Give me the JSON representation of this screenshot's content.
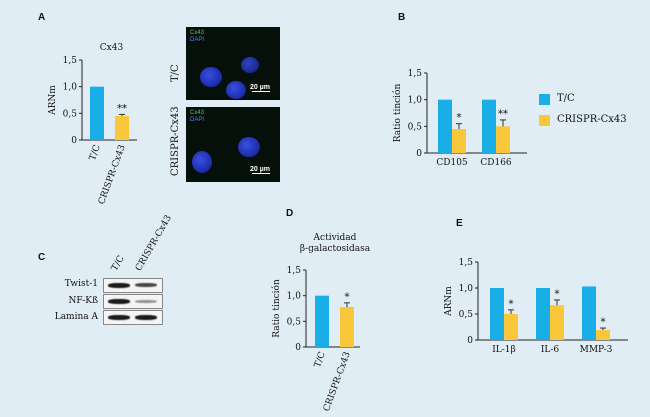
{
  "panels": {
    "a": "A",
    "b": "B",
    "c": "C",
    "d": "D",
    "e": "E"
  },
  "colors": {
    "tc": "#1aaee8",
    "crispr": "#fac63a",
    "background": "#e1edf4"
  },
  "micrograph": {
    "channel_cx43": "Cx43",
    "channel_dapi": "DAPI",
    "scale": "20 µm",
    "row_labels": [
      "T/C",
      "CRISPR-Cx43"
    ]
  },
  "blot": {
    "columns": [
      "T/C",
      "CRISPR-Cx43"
    ],
    "rows": [
      "Twist-1",
      "NF-Kß",
      "Lamina A"
    ]
  },
  "legend": {
    "items": [
      "T/C",
      "CRISPR-Cx43"
    ]
  },
  "chart_data": [
    {
      "id": "A",
      "type": "bar",
      "title": "Cx43",
      "ylabel": "ARNm",
      "ylim": [
        0,
        1.5
      ],
      "yticks": [
        "0",
        "0,5",
        "1,0",
        "1,5"
      ],
      "categories": [
        "T/C",
        "CRISPR-Cx43"
      ],
      "values": [
        1.0,
        0.45
      ],
      "errors": [
        0,
        0.03
      ],
      "annotations": [
        "",
        "**"
      ]
    },
    {
      "id": "B",
      "type": "bar",
      "ylabel": "Ratio tinción",
      "ylim": [
        0,
        1.5
      ],
      "yticks": [
        "0",
        "0,5",
        "1,0",
        "1,5"
      ],
      "categories": [
        "CD105",
        "CD166"
      ],
      "series": [
        {
          "name": "T/C",
          "values": [
            1.0,
            1.0
          ],
          "errors": [
            0,
            0
          ]
        },
        {
          "name": "CRISPR-Cx43",
          "values": [
            0.45,
            0.5
          ],
          "errors": [
            0.1,
            0.12
          ]
        }
      ],
      "annotations": [
        "*",
        "**"
      ]
    },
    {
      "id": "D",
      "type": "bar",
      "title": "Actividad β-galactosidasa",
      "title_lines": [
        "Actividad",
        "β-galactosidasa"
      ],
      "ylabel": "Ratio tinción",
      "ylim": [
        0,
        1.5
      ],
      "yticks": [
        "0",
        "0,5",
        "1,0",
        "1,5"
      ],
      "categories": [
        "T/C",
        "CRISPR-Cx43"
      ],
      "values": [
        1.0,
        0.78
      ],
      "errors": [
        0,
        0.08
      ],
      "annotations": [
        "",
        "*"
      ]
    },
    {
      "id": "E",
      "type": "bar",
      "ylabel": "ARNm",
      "ylim": [
        0,
        1.5
      ],
      "yticks": [
        "0",
        "0,5",
        "1,0",
        "1,5"
      ],
      "categories": [
        "IL-1β",
        "IL-6",
        "MMP-3"
      ],
      "series": [
        {
          "name": "T/C",
          "values": [
            1.0,
            1.0,
            1.03
          ],
          "errors": [
            0,
            0,
            0
          ]
        },
        {
          "name": "CRISPR-Cx43",
          "values": [
            0.5,
            0.67,
            0.19
          ],
          "errors": [
            0.08,
            0.1,
            0.04
          ]
        }
      ],
      "annotations": [
        "*",
        "*",
        "*"
      ]
    }
  ]
}
